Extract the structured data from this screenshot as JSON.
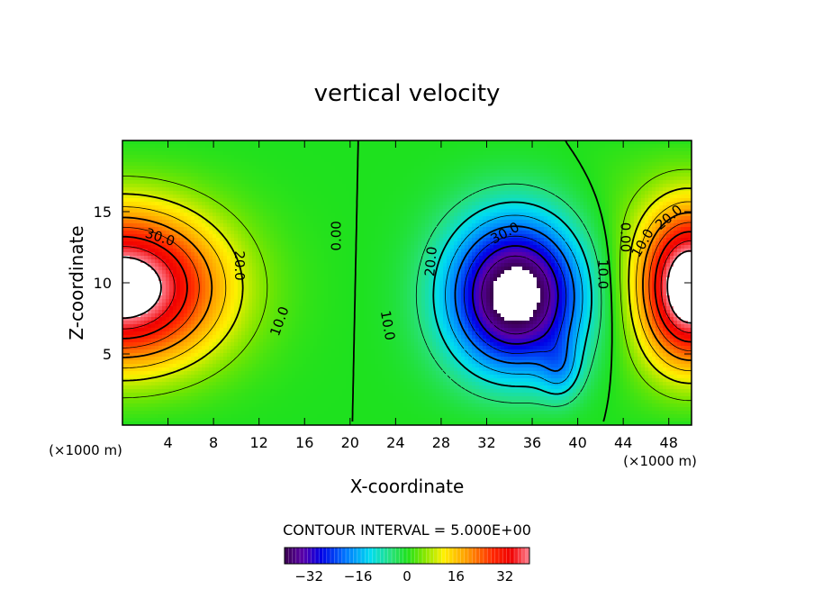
{
  "chart_data": {
    "type": "heatmap",
    "subtype": "filled-contour",
    "title": "vertical velocity",
    "xlabel": "X-coordinate",
    "ylabel": "Z-coordinate",
    "x_unit_left": "(×1000 m)",
    "x_unit_right": "(×1000 m)",
    "xlim": [
      0,
      50
    ],
    "ylim": [
      0,
      20
    ],
    "x_ticks": [
      4,
      8,
      12,
      16,
      20,
      24,
      28,
      32,
      36,
      40,
      44,
      48
    ],
    "y_ticks": [
      5,
      10,
      15
    ],
    "contour_interval_text": "CONTOUR INTERVAL = 5.000E+00",
    "contour_interval": 5.0,
    "contour_labels": [
      {
        "text": "30.0",
        "x": 3.3,
        "y": 13.2,
        "angle": 18
      },
      {
        "text": "20.0",
        "x": 10.3,
        "y": 11.2,
        "angle": 90
      },
      {
        "text": "10.0",
        "x": 13.8,
        "y": 7.3,
        "angle": -70
      },
      {
        "text": "0.00",
        "x": 18.8,
        "y": 13.3,
        "angle": -90
      },
      {
        "text": "10.0",
        "x": 23.3,
        "y": 7.0,
        "angle": 80
      },
      {
        "text": "20.0",
        "x": 27.1,
        "y": 11.5,
        "angle": -85
      },
      {
        "text": "30.0",
        "x": 33.6,
        "y": 13.5,
        "angle": -28
      },
      {
        "text": "10.0",
        "x": 42.2,
        "y": 10.6,
        "angle": 90
      },
      {
        "text": "0.00",
        "x": 44.2,
        "y": 13.2,
        "angle": 90
      },
      {
        "text": "10.0",
        "x": 45.7,
        "y": 12.8,
        "angle": -60
      },
      {
        "text": "20.0",
        "x": 48.0,
        "y": 14.6,
        "angle": -40
      }
    ],
    "colorbar": {
      "vmin": -40,
      "vmax": 40,
      "ticks": [
        -32,
        -16,
        0,
        16,
        32
      ],
      "tick_labels": [
        "−32",
        "−16",
        "0",
        "16",
        "32"
      ]
    },
    "field_features": [
      {
        "kind": "updraft",
        "x": 0,
        "z": 9.5,
        "peak": 45
      },
      {
        "kind": "downdraft",
        "x": 35.5,
        "z": 8.5,
        "peak": -45
      },
      {
        "kind": "updraft",
        "x": 50,
        "z": 9.5,
        "peak": 45
      }
    ],
    "colors": {
      "min": "#3a0050",
      "mid": "#22e022",
      "max": "#ff7a8a",
      "out_of_range": "#ffffff"
    }
  }
}
